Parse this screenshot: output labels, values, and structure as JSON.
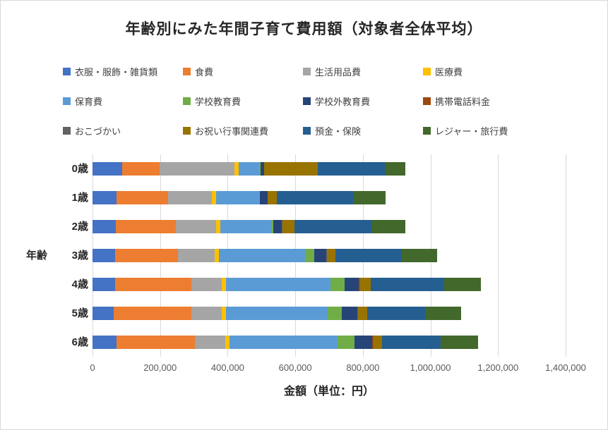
{
  "title": "年齢別にみた年間子育て費用額（対象者全体平均）",
  "x_axis_label": "金額（単位：円）",
  "y_axis_label": "年齢",
  "chart_data": {
    "type": "bar",
    "orientation": "horizontal",
    "stacked": true,
    "grid": true,
    "legend_position": "top",
    "categories": [
      "0歳",
      "1歳",
      "2歳",
      "3歳",
      "4歳",
      "5歳",
      "6歳"
    ],
    "xlim": [
      0,
      1400000
    ],
    "x_ticks": [
      0,
      200000,
      400000,
      600000,
      800000,
      1000000,
      1200000,
      1400000
    ],
    "x_tick_labels": [
      "0",
      "200,000",
      "400,000",
      "600,000",
      "800,000",
      "1,000,000",
      "1,200,000",
      "1,400,000"
    ],
    "series": [
      {
        "name": "衣服・服飾・雑貨類",
        "color": "#4472C4",
        "values": [
          88000,
          70000,
          68000,
          66000,
          67000,
          63000,
          71000
        ]
      },
      {
        "name": "食費",
        "color": "#ED7D31",
        "values": [
          111000,
          153000,
          178000,
          186000,
          225000,
          229000,
          233000
        ]
      },
      {
        "name": "生活用品費",
        "color": "#A5A5A5",
        "values": [
          222000,
          130000,
          120000,
          110000,
          90000,
          90000,
          89000
        ]
      },
      {
        "name": "医療費",
        "color": "#FFC000",
        "values": [
          12000,
          12000,
          13000,
          13000,
          13000,
          13000,
          12000
        ]
      },
      {
        "name": "保育費",
        "color": "#5B9BD5",
        "values": [
          63000,
          128000,
          150000,
          255000,
          310000,
          300000,
          320000
        ]
      },
      {
        "name": "学校教育費",
        "color": "#70AD47",
        "values": [
          2000,
          3000,
          5000,
          27000,
          40000,
          42000,
          50000
        ]
      },
      {
        "name": "学校外教育費",
        "color": "#264478",
        "values": [
          9000,
          22000,
          26000,
          34000,
          43000,
          46000,
          53000
        ]
      },
      {
        "name": "携帯電話料金",
        "color": "#9E480E",
        "values": [
          0,
          0,
          1000,
          1000,
          1000,
          1000,
          1000
        ]
      },
      {
        "name": "おこづかい",
        "color": "#636363",
        "values": [
          0,
          0,
          1000,
          1000,
          2000,
          2000,
          3000
        ]
      },
      {
        "name": "お祝い行事関連費",
        "color": "#997300",
        "values": [
          159000,
          28000,
          36000,
          25000,
          33000,
          26000,
          24000
        ]
      },
      {
        "name": "預金・保険",
        "color": "#255E91",
        "values": [
          199000,
          226000,
          228000,
          197000,
          216000,
          172000,
          175000
        ]
      },
      {
        "name": "レジャー・旅行費",
        "color": "#43682B",
        "values": [
          60000,
          95000,
          100000,
          105000,
          110000,
          107000,
          110000
        ]
      }
    ],
    "totals": [
      925000,
      867000,
      926000,
      1020000,
      1150000,
      1091000,
      1141000
    ]
  }
}
